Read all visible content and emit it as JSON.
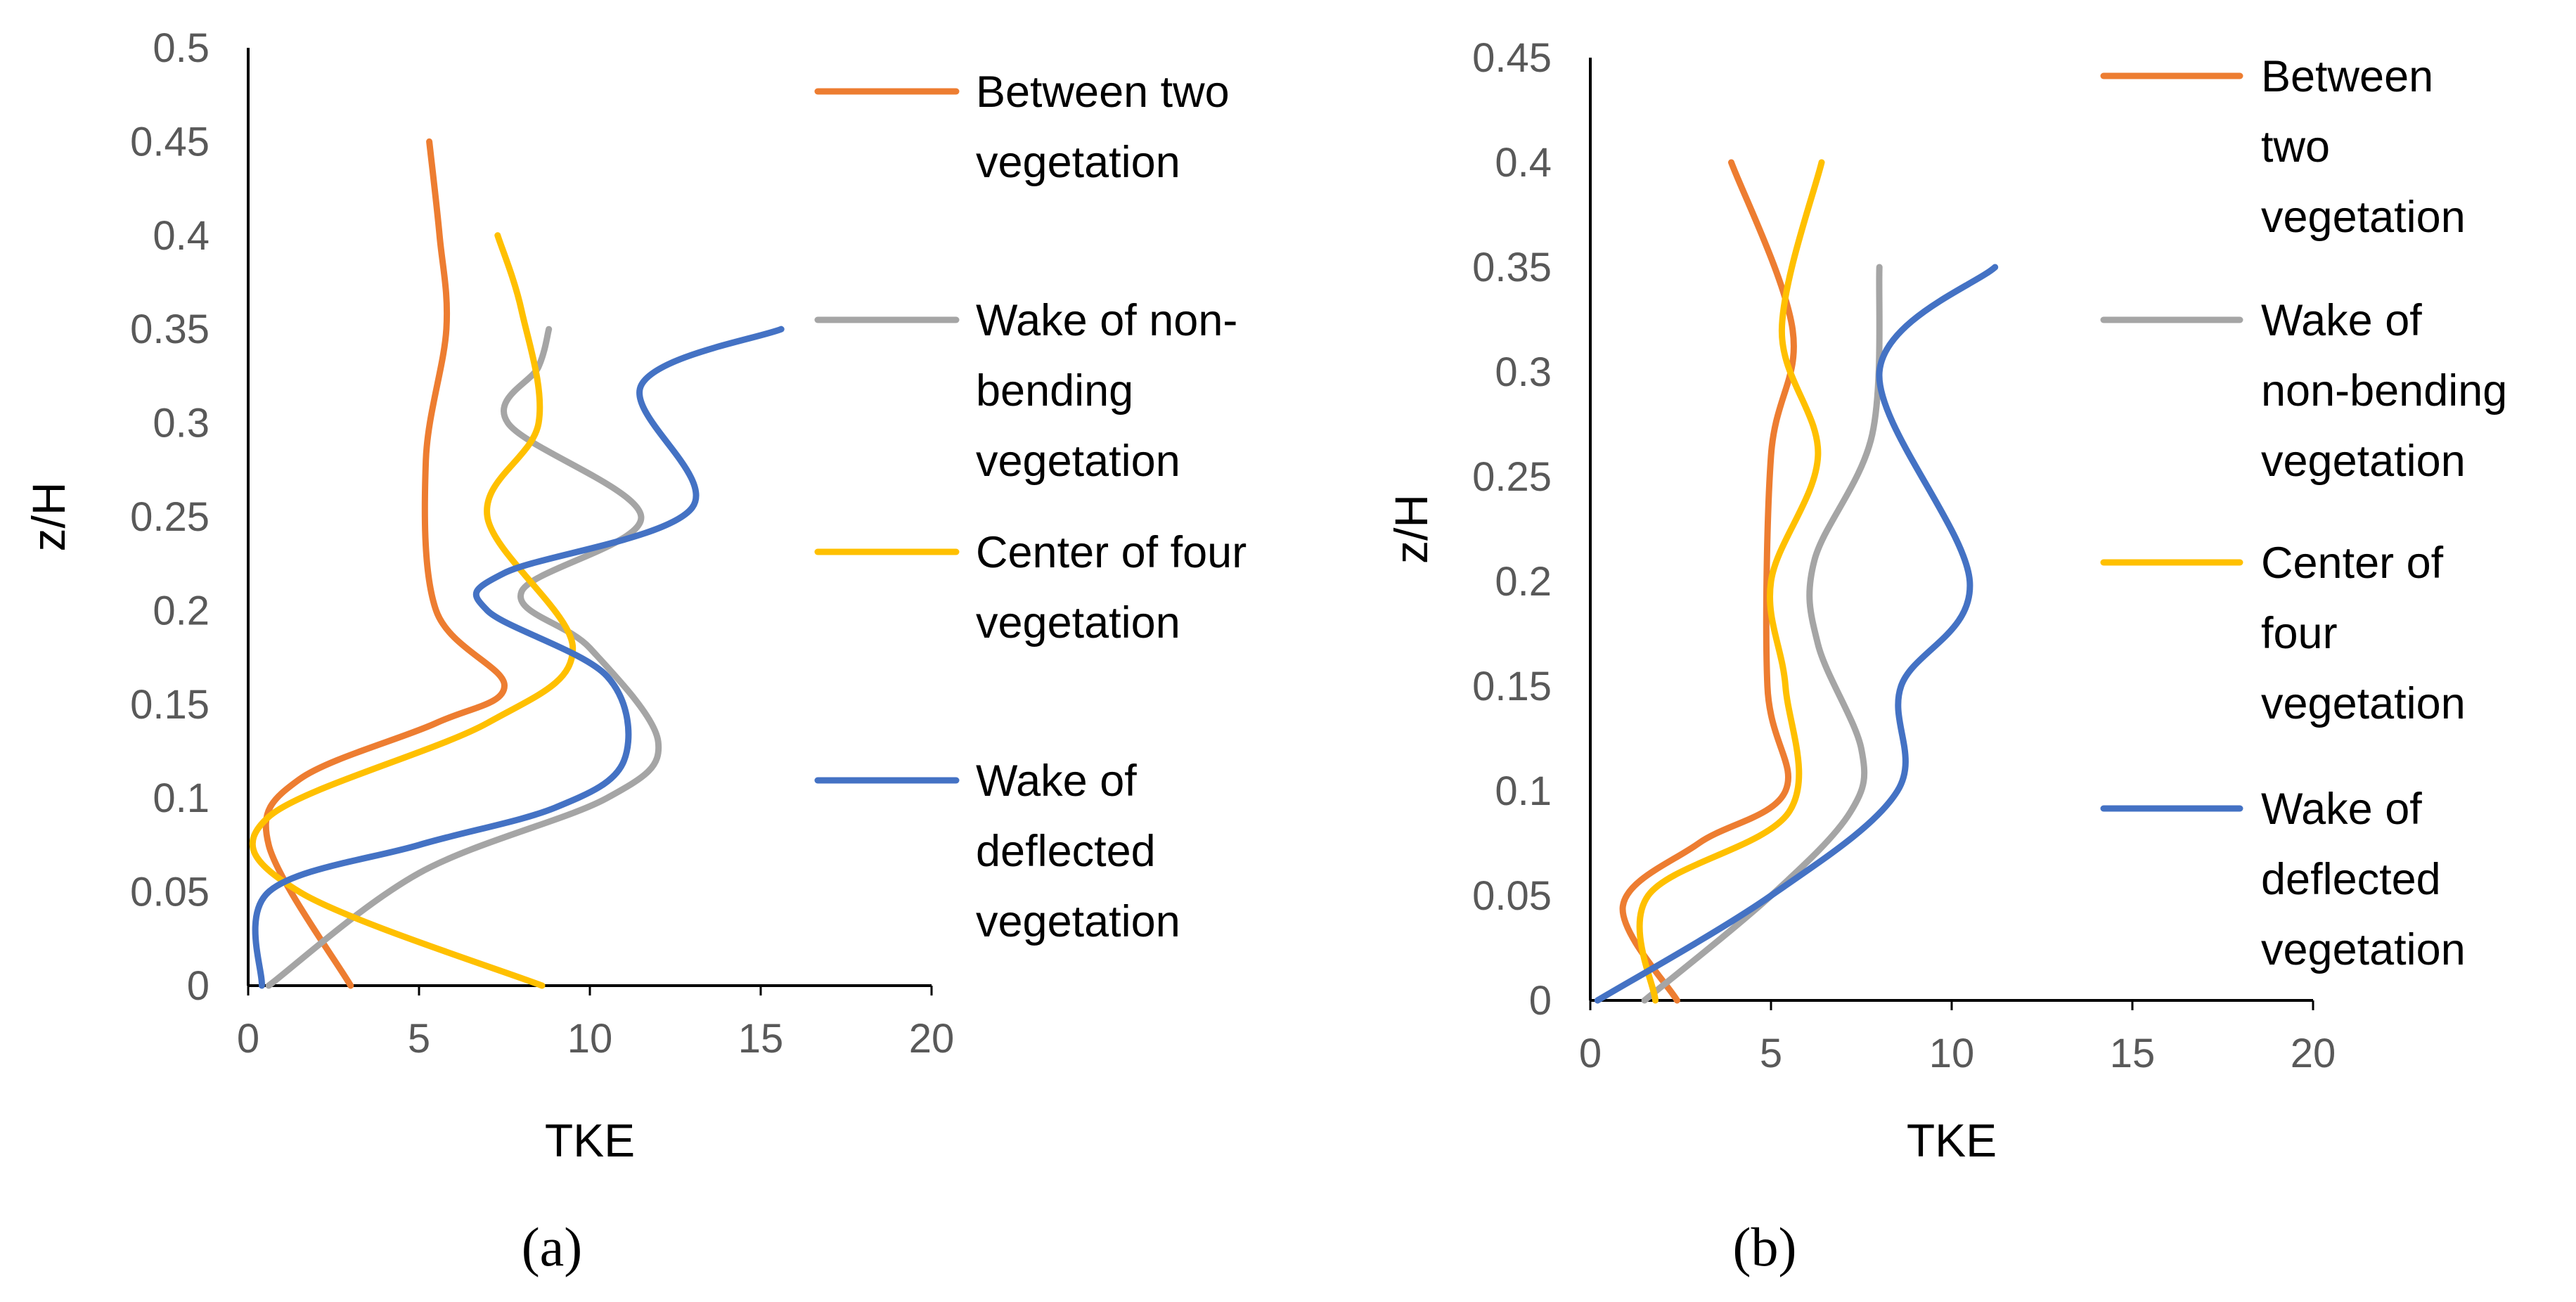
{
  "colors": {
    "between_two": "#ED7D31",
    "non_bending": "#A5A5A5",
    "center_four": "#FFC000",
    "deflected": "#4472C4"
  },
  "chart_data": [
    {
      "type": "line",
      "caption": "(a)",
      "xlabel": "TKE",
      "ylabel": "z/H",
      "xlim": [
        0,
        20
      ],
      "ylim": [
        0,
        0.5
      ],
      "xticks": [
        "0",
        "5",
        "10",
        "15",
        "20"
      ],
      "yticks": [
        "0",
        "0.05",
        "0.1",
        "0.15",
        "0.2",
        "0.25",
        "0.3",
        "0.35",
        "0.4",
        "0.45",
        "0.5"
      ],
      "legend_position": "right",
      "series": [
        {
          "name": "Between two vegetation",
          "color": "#ED7D31",
          "legend_lines": [
            "Between two",
            "vegetation"
          ],
          "points": [
            [
              3.0,
              0
            ],
            [
              0.6,
              0.075
            ],
            [
              1.5,
              0.11
            ],
            [
              5.5,
              0.14
            ],
            [
              7.5,
              0.16
            ],
            [
              5.5,
              0.2
            ],
            [
              5.2,
              0.28
            ],
            [
              5.8,
              0.35
            ],
            [
              5.6,
              0.4
            ],
            [
              5.3,
              0.45
            ]
          ]
        },
        {
          "name": "Wake of non-bending vegetation",
          "color": "#A5A5A5",
          "legend_lines": [
            "Wake of non-",
            "bending",
            "vegetation"
          ],
          "points": [
            [
              0.6,
              0
            ],
            [
              5.0,
              0.06
            ],
            [
              10.5,
              0.1
            ],
            [
              12.0,
              0.13
            ],
            [
              10.0,
              0.18
            ],
            [
              8.0,
              0.21
            ],
            [
              11.5,
              0.25
            ],
            [
              7.6,
              0.3
            ],
            [
              8.5,
              0.33
            ],
            [
              8.8,
              0.35
            ]
          ]
        },
        {
          "name": "Center of four vegetation",
          "color": "#FFC000",
          "legend_lines": [
            "Center of four",
            "vegetation"
          ],
          "points": [
            [
              8.6,
              0
            ],
            [
              1.5,
              0.05
            ],
            [
              0.6,
              0.09
            ],
            [
              7.0,
              0.14
            ],
            [
              9.5,
              0.18
            ],
            [
              7.0,
              0.25
            ],
            [
              8.5,
              0.3
            ],
            [
              8.0,
              0.36
            ],
            [
              7.3,
              0.4
            ]
          ]
        },
        {
          "name": "Wake of deflected vegetation",
          "color": "#4472C4",
          "legend_lines": [
            "Wake of",
            "deflected",
            "vegetation"
          ],
          "points": [
            [
              0.4,
              0
            ],
            [
              0.6,
              0.05
            ],
            [
              5.0,
              0.075
            ],
            [
              9.0,
              0.095
            ],
            [
              11.0,
              0.12
            ],
            [
              10.5,
              0.165
            ],
            [
              7.0,
              0.2
            ],
            [
              7.5,
              0.22
            ],
            [
              13.0,
              0.255
            ],
            [
              11.5,
              0.32
            ],
            [
              15.6,
              0.35
            ]
          ]
        }
      ]
    },
    {
      "type": "line",
      "caption": "(b)",
      "xlabel": "TKE",
      "ylabel": "z/H",
      "xlim": [
        0,
        20
      ],
      "ylim": [
        0,
        0.45
      ],
      "xticks": [
        "0",
        "5",
        "10",
        "15",
        "20"
      ],
      "yticks": [
        "0",
        "0.05",
        "0.1",
        "0.15",
        "0.2",
        "0.25",
        "0.3",
        "0.35",
        "0.4",
        "0.45"
      ],
      "legend_position": "right",
      "series": [
        {
          "name": "Between two vegetation",
          "color": "#ED7D31",
          "legend_lines": [
            "Between",
            "two",
            "vegetation"
          ],
          "points": [
            [
              2.4,
              0
            ],
            [
              0.9,
              0.045
            ],
            [
              3.0,
              0.075
            ],
            [
              5.4,
              0.1
            ],
            [
              4.9,
              0.15
            ],
            [
              5.0,
              0.26
            ],
            [
              5.6,
              0.32
            ],
            [
              3.9,
              0.4
            ]
          ]
        },
        {
          "name": "Wake of non-bending vegetation",
          "color": "#A5A5A5",
          "legend_lines": [
            "Wake of",
            "non-bending",
            "vegetation"
          ],
          "points": [
            [
              1.5,
              0
            ],
            [
              5.0,
              0.05
            ],
            [
              7.2,
              0.09
            ],
            [
              7.5,
              0.12
            ],
            [
              6.3,
              0.17
            ],
            [
              6.2,
              0.21
            ],
            [
              7.8,
              0.27
            ],
            [
              8.0,
              0.35
            ]
          ]
        },
        {
          "name": "Center of four vegetation",
          "color": "#FFC000",
          "legend_lines": [
            "Center of",
            "four",
            "vegetation"
          ],
          "points": [
            [
              1.8,
              0
            ],
            [
              1.6,
              0.05
            ],
            [
              5.5,
              0.09
            ],
            [
              5.4,
              0.15
            ],
            [
              5.0,
              0.2
            ],
            [
              6.3,
              0.26
            ],
            [
              5.3,
              0.32
            ],
            [
              6.4,
              0.4
            ]
          ]
        },
        {
          "name": "Wake of deflected vegetation",
          "color": "#4472C4",
          "legend_lines": [
            "Wake of",
            "deflected",
            "vegetation"
          ],
          "points": [
            [
              0.2,
              0
            ],
            [
              5.0,
              0.05
            ],
            [
              8.5,
              0.1
            ],
            [
              8.6,
              0.15
            ],
            [
              10.5,
              0.2
            ],
            [
              8.0,
              0.3
            ],
            [
              11.2,
              0.35
            ]
          ]
        }
      ]
    }
  ]
}
